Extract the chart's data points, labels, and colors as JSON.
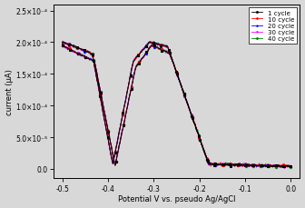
{
  "title": "",
  "xlabel": "Potential V vs. pseudo Ag/AgCl",
  "ylabel": "current (μA)",
  "xlim": [
    -0.52,
    0.02
  ],
  "ylim": [
    -1.5e-05,
    0.00026
  ],
  "ytick_vals": [
    0.0,
    5e-05,
    0.0001,
    0.00015,
    0.0002,
    0.00025
  ],
  "ytick_labels": [
    "0.0",
    "5.0×10⁻⁵",
    "1.0×10⁻⁴",
    "1.5×10⁻⁴",
    "2.0×10⁻⁴",
    "2.5×10⁻⁴"
  ],
  "xticks": [
    -0.5,
    -0.4,
    -0.3,
    -0.2,
    -0.1,
    0.0
  ],
  "legend_labels": [
    "1 cycle",
    "10 cycle",
    "20 cycle",
    "30 cycle",
    "40 cycle"
  ],
  "colors": [
    "black",
    "red",
    "blue",
    "magenta",
    "green"
  ],
  "markers": [
    "s",
    "o",
    "^",
    "v",
    "D"
  ],
  "background_color": "#d8d8d8",
  "figsize": [
    3.36,
    2.3
  ],
  "dpi": 100
}
